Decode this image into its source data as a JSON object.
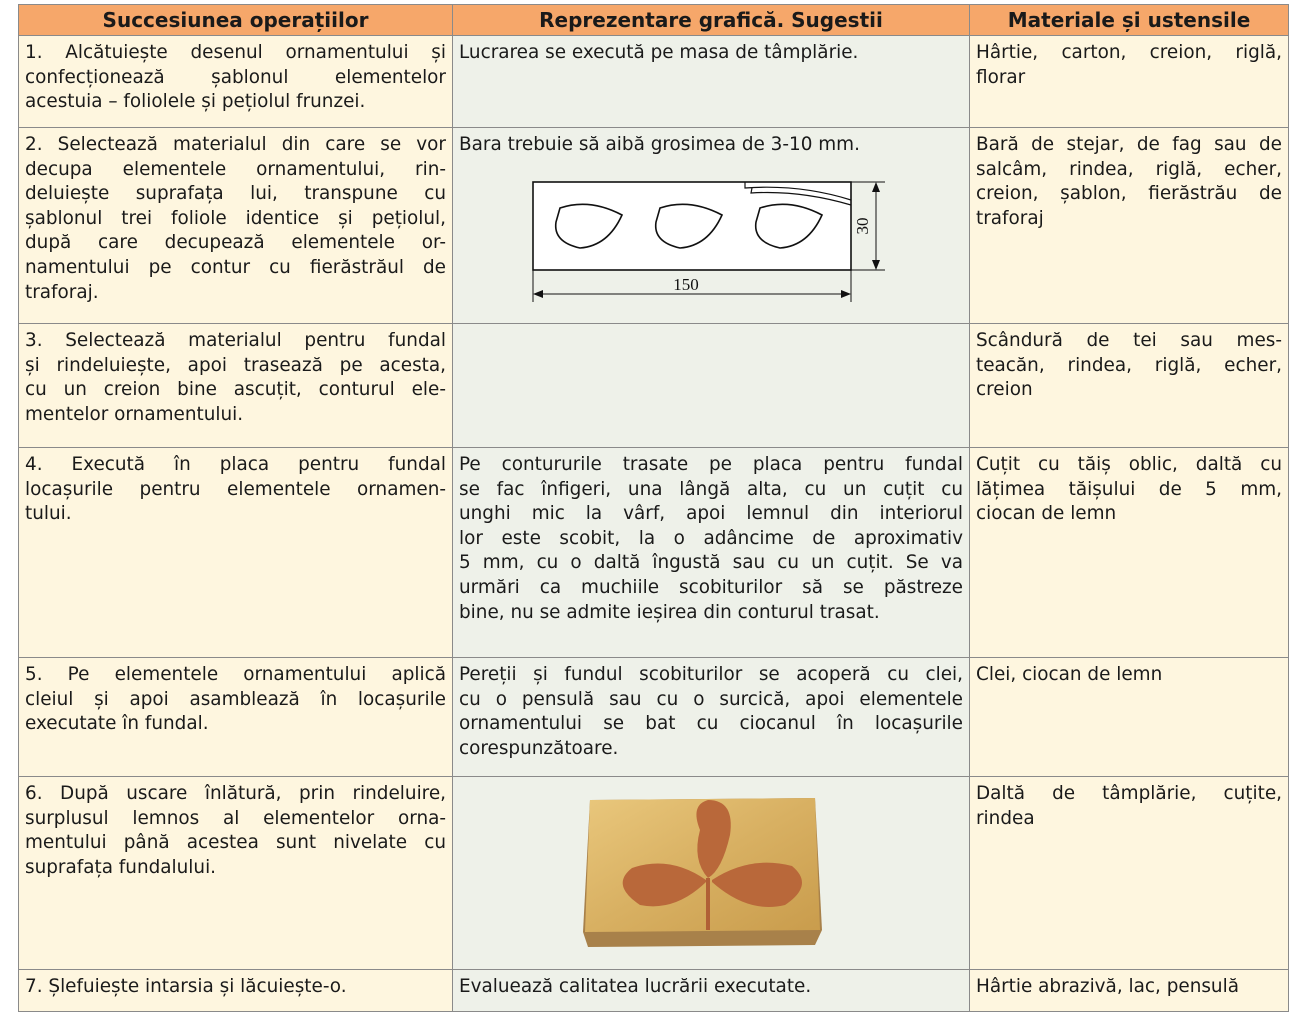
{
  "table": {
    "header": [
      "Succesiunea operațiilor",
      "Reprezentare grafică. Sugestii",
      "Materiale și ustensile"
    ],
    "rows": [
      {
        "steps": [
          "1. Alcătuiește desenul ornamentului și",
          "confecționează șablonul elementelor",
          "acestuia – foliolele și pețiolul frunzei."
        ],
        "suggestion": [
          "Lucrarea se execută pe masa de tâmplărie."
        ],
        "materials": [
          "Hârtie, carton, creion, riglă,",
          "florar"
        ]
      },
      {
        "steps": [
          "2. Selectează materialul din care se vor",
          "decupa elementele ornamentului, rin-",
          "deluiește suprafața lui, transpune cu",
          "șablonul trei foliole identice și pețiolul,",
          "după care decupează elementele or-",
          "namentului pe contur cu fierăstrăul de",
          "traforaj."
        ],
        "suggestion": [
          "Bara trebuie să aibă grosimea de 3-10 mm."
        ],
        "diagram": {
          "length": "150",
          "height": "30"
        },
        "materials": [
          "Bară de stejar, de fag sau de",
          "salcâm, rindea, riglă, echer,",
          "creion, șablon, fierăstrău de",
          "traforaj"
        ]
      },
      {
        "steps": [
          "3. Selectează materialul pentru fundal",
          "și rindeluiește, apoi trasează pe acesta,",
          "cu un creion bine ascuțit, conturul ele-",
          "mentelor ornamentului."
        ],
        "suggestion": [],
        "materials": [
          "Scândură de tei sau mes-",
          "teacăn, rindea, riglă, echer,",
          "creion"
        ]
      },
      {
        "steps": [
          "4. Execută în placa pentru fundal",
          "locașurile pentru elementele ornamen-",
          "tului."
        ],
        "suggestion": [
          "Pe contururile trasate pe placa pentru fundal",
          "se fac înfigeri, una lângă alta, cu un cuțit cu",
          "unghi mic la vârf, apoi lemnul din interiorul",
          "lor este scobit, la o adâncime de aproximativ",
          "5 mm, cu o daltă îngustă sau cu un cuțit. Se va",
          "urmări ca muchiile scobiturilor să se păstreze",
          "bine, nu se admite ieșirea din conturul trasat."
        ],
        "materials": [
          "Cuțit cu tăiș oblic, daltă cu",
          "lățimea tăișului de 5 mm,",
          "ciocan de lemn"
        ]
      },
      {
        "steps": [
          "5. Pe elementele ornamentului aplică",
          "cleiul și apoi asamblează în locașurile",
          "executate în fundal."
        ],
        "suggestion": [
          "Pereții și fundul scobiturilor se acoperă cu clei,",
          "cu o pensulă sau cu o surcică, apoi elementele",
          "ornamentului se bat cu ciocanul în locașurile",
          "corespunzătoare."
        ],
        "materials": [
          "Clei, ciocan de lemn"
        ]
      },
      {
        "steps": [
          "6. După uscare înlătură, prin rindeluire,",
          "surplusul lemnos al elementelor orna-",
          "mentului până acestea sunt nivelate cu",
          "suprafața fundalului."
        ],
        "suggestion": [],
        "materials": [
          "Daltă de tâmplărie, cuțite,",
          "rindea"
        ]
      },
      {
        "steps": [
          "7. Șlefuiește intarsia și lăcuiește-o."
        ],
        "suggestion": [
          "Evaluează calitatea lucrării executate."
        ],
        "materials": [
          "Hârtie abrazivă, lac, pensulă"
        ]
      }
    ]
  }
}
